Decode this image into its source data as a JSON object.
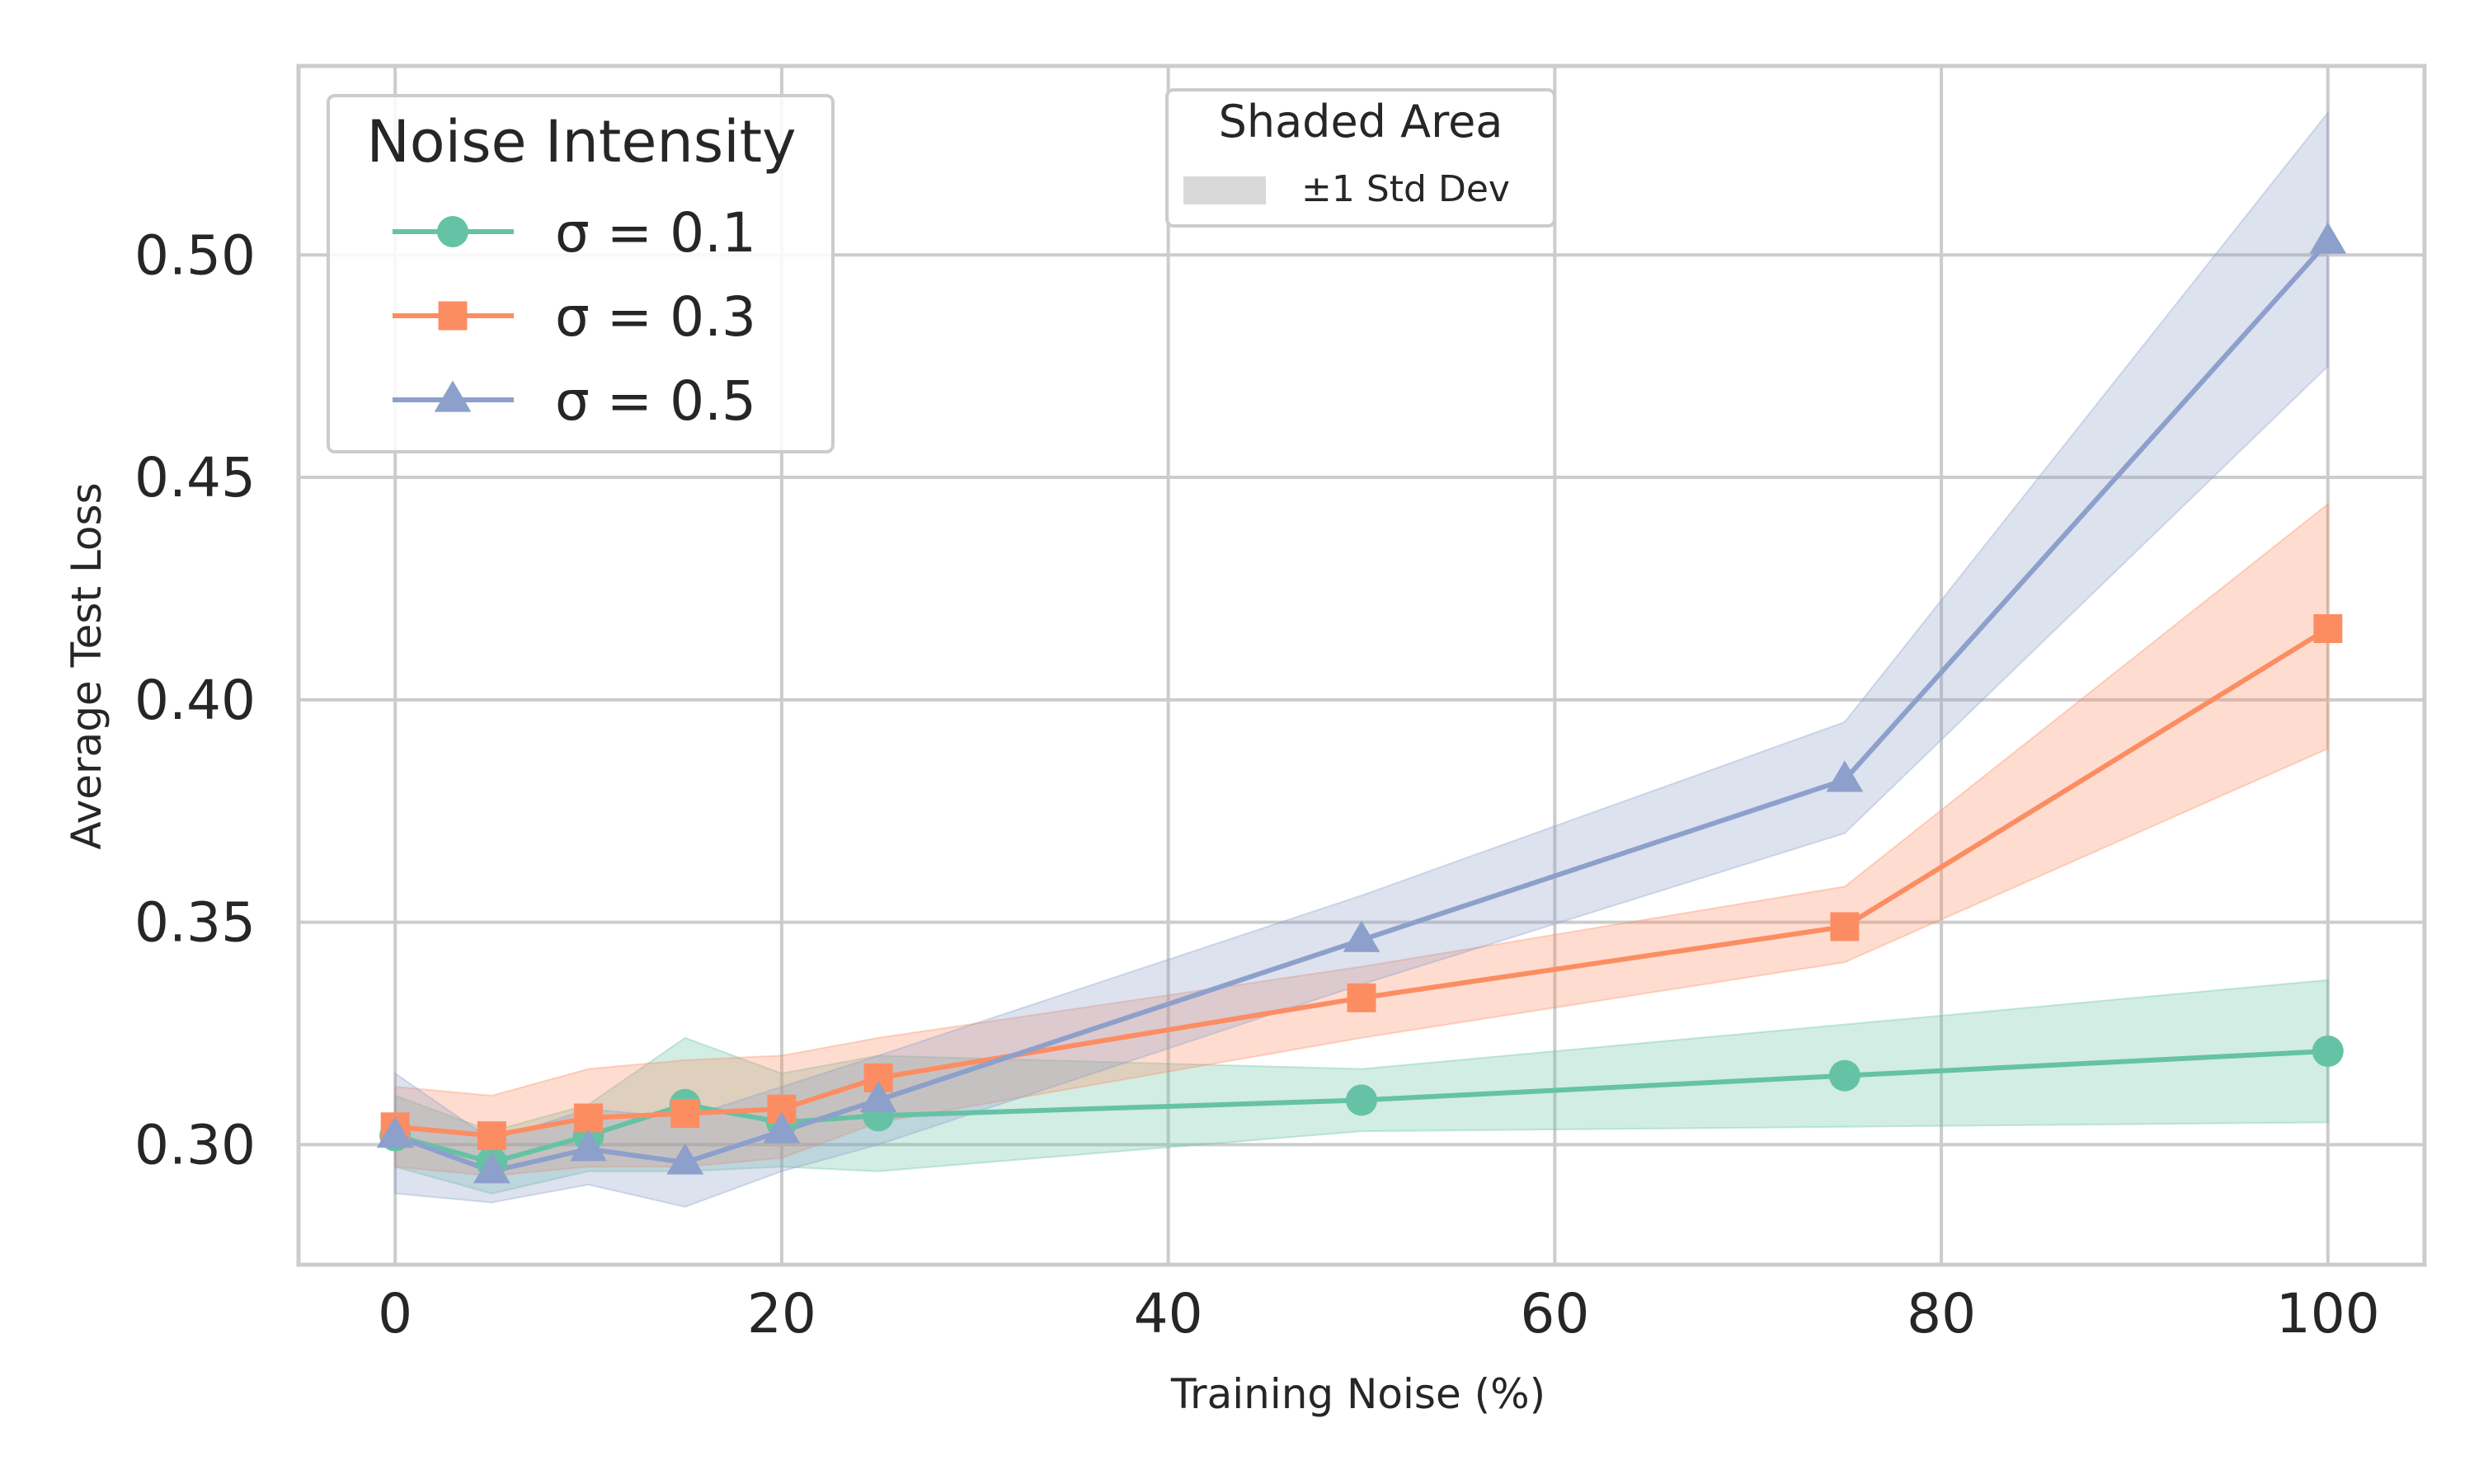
{
  "chart_data": {
    "type": "line",
    "title": "",
    "xlabel": "Training Noise (%)",
    "ylabel": "Average Test Loss",
    "xlim": [
      -5,
      105
    ],
    "ylim": [
      0.273,
      0.5425
    ],
    "xticks": [
      0,
      20,
      40,
      60,
      80,
      100
    ],
    "xtick_labels": [
      "0",
      "20",
      "40",
      "60",
      "80",
      "100"
    ],
    "yticks": [
      0.3,
      0.35,
      0.4,
      0.45,
      0.5
    ],
    "ytick_labels": [
      "0.30",
      "0.35",
      "0.40",
      "0.45",
      "0.50"
    ],
    "grid": true,
    "x": [
      0,
      5,
      10,
      15,
      20,
      25,
      50,
      75,
      100
    ],
    "series": [
      {
        "name": "σ = 0.1",
        "color": "#66c2a5",
        "marker": "circle",
        "values": [
          0.302,
          0.296,
          0.302,
          0.309,
          0.305,
          0.3065,
          0.31,
          0.3155,
          0.321
        ],
        "lower": [
          0.295,
          0.289,
          0.294,
          0.294,
          0.295,
          0.294,
          0.303,
          0.304,
          0.305
        ],
        "upper": [
          0.311,
          0.303,
          0.309,
          0.324,
          0.316,
          0.32,
          0.317,
          0.327,
          0.337
        ]
      },
      {
        "name": "σ = 0.3",
        "color": "#fc8d62",
        "marker": "square",
        "values": [
          0.304,
          0.302,
          0.306,
          0.307,
          0.308,
          0.315,
          0.333,
          0.349,
          0.416
        ],
        "lower": [
          0.295,
          0.293,
          0.295,
          0.295,
          0.297,
          0.305,
          0.324,
          0.341,
          0.389
        ],
        "upper": [
          0.313,
          0.311,
          0.317,
          0.319,
          0.32,
          0.324,
          0.34,
          0.358,
          0.444
        ]
      },
      {
        "name": "σ = 0.5",
        "color": "#8da0cb",
        "marker": "triangle",
        "values": [
          0.302,
          0.294,
          0.299,
          0.296,
          0.303,
          0.31,
          0.346,
          0.382,
          0.503
        ],
        "lower": [
          0.289,
          0.287,
          0.291,
          0.286,
          0.294,
          0.3,
          0.336,
          0.37,
          0.475
        ],
        "upper": [
          0.316,
          0.301,
          0.308,
          0.306,
          0.313,
          0.32,
          0.356,
          0.395,
          0.532
        ]
      }
    ],
    "legend": {
      "title": "Noise Intensity",
      "placement": "top-left"
    },
    "shade_legend": {
      "title": "Shaded Area",
      "label": "±1 Std Dev",
      "color": "#d9d9d9",
      "placement": "top-center"
    }
  }
}
